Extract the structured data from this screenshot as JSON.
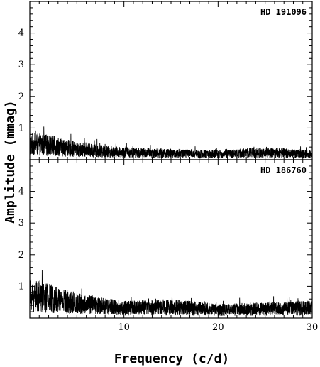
{
  "chart_data": {
    "type": "line",
    "xlabel": "Frequency (c/d)",
    "ylabel": "Amplitude (mmag)",
    "xlim": [
      0,
      30
    ],
    "ylim": [
      0,
      5
    ],
    "x_ticks": [
      10,
      20,
      30
    ],
    "y_ticks": [
      1,
      2,
      3,
      4
    ],
    "grid": false,
    "panels": [
      {
        "label": "HD 191096",
        "noise_envelope": [
          {
            "x": 0,
            "amplitude": 0.85
          },
          {
            "x": 2,
            "amplitude": 0.8
          },
          {
            "x": 5,
            "amplitude": 0.55
          },
          {
            "x": 10,
            "amplitude": 0.4
          },
          {
            "x": 15,
            "amplitude": 0.35
          },
          {
            "x": 20,
            "amplitude": 0.3
          },
          {
            "x": 25,
            "amplitude": 0.4
          },
          {
            "x": 30,
            "amplitude": 0.3
          }
        ]
      },
      {
        "label": "HD 186760",
        "noise_envelope": [
          {
            "x": 0,
            "amplitude": 1.2
          },
          {
            "x": 2,
            "amplitude": 1.1
          },
          {
            "x": 5,
            "amplitude": 0.8
          },
          {
            "x": 10,
            "amplitude": 0.55
          },
          {
            "x": 15,
            "amplitude": 0.6
          },
          {
            "x": 20,
            "amplitude": 0.45
          },
          {
            "x": 25,
            "amplitude": 0.5
          },
          {
            "x": 30,
            "amplitude": 0.55
          }
        ]
      }
    ]
  }
}
